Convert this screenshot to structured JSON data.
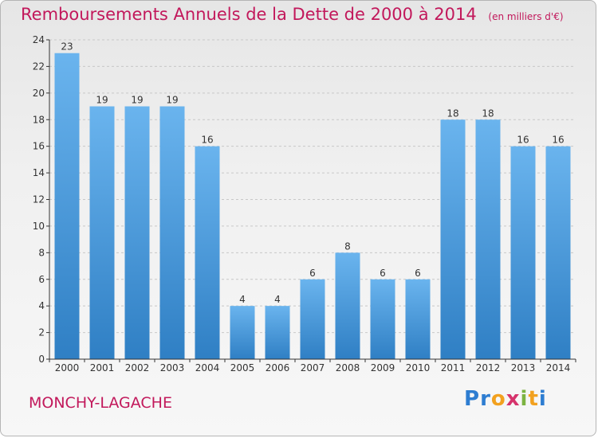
{
  "title": "Remboursements Annuels de la Dette de 2000 à 2014",
  "unit": "(en milliers d'€)",
  "city": "MONCHY-LAGACHE",
  "logo": {
    "letters": [
      "P",
      "r",
      "o",
      "x",
      "i",
      "t",
      "i"
    ],
    "colors": [
      "#2e7dd1",
      "#2e7dd1",
      "#f2a11f",
      "#d6336c",
      "#7cb342",
      "#f2a11f",
      "#2e7dd1"
    ]
  },
  "colors": {
    "title": "#c2185b",
    "bar_top": "#6ab4ee",
    "bar_bottom": "#2f7fc4",
    "axis": "#333333",
    "grid": "#c8c8c8"
  },
  "chart_data": {
    "type": "bar",
    "categories": [
      "2000",
      "2001",
      "2002",
      "2003",
      "2004",
      "2005",
      "2006",
      "2007",
      "2008",
      "2009",
      "2010",
      "2011",
      "2012",
      "2013",
      "2014"
    ],
    "values": [
      23,
      19,
      19,
      19,
      16,
      4,
      4,
      6,
      8,
      6,
      6,
      18,
      18,
      16,
      16
    ],
    "ylim": [
      0,
      24
    ],
    "yticks": [
      0,
      2,
      4,
      6,
      8,
      10,
      12,
      14,
      16,
      18,
      20,
      22,
      24
    ],
    "grid": true,
    "legend": "none"
  }
}
